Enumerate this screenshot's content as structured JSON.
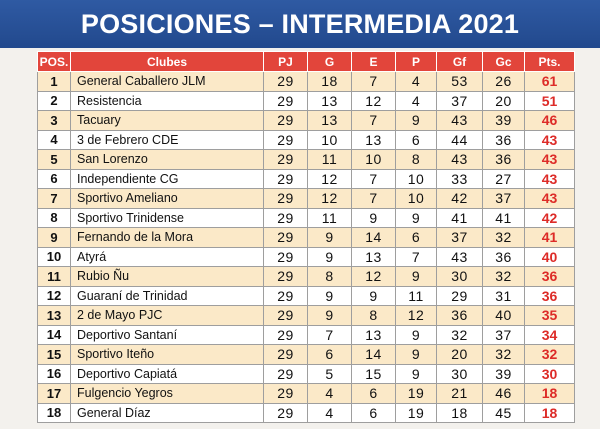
{
  "title": "POSICIONES – INTERMEDIA 2021",
  "columns": [
    "POS.",
    "Clubes",
    "PJ",
    "G",
    "E",
    "P",
    "Gf",
    "Gc",
    "Pts."
  ],
  "rows": [
    {
      "pos": "1",
      "club": "General Caballero JLM",
      "pj": "29",
      "g": "18",
      "e": "7",
      "p": "4",
      "gf": "53",
      "gc": "26",
      "pts": "61"
    },
    {
      "pos": "2",
      "club": "Resistencia",
      "pj": "29",
      "g": "13",
      "e": "12",
      "p": "4",
      "gf": "37",
      "gc": "20",
      "pts": "51"
    },
    {
      "pos": "3",
      "club": "Tacuary",
      "pj": "29",
      "g": "13",
      "e": "7",
      "p": "9",
      "gf": "43",
      "gc": "39",
      "pts": "46"
    },
    {
      "pos": "4",
      "club": "3 de Febrero CDE",
      "pj": "29",
      "g": "10",
      "e": "13",
      "p": "6",
      "gf": "44",
      "gc": "36",
      "pts": "43"
    },
    {
      "pos": "5",
      "club": "San Lorenzo",
      "pj": "29",
      "g": "11",
      "e": "10",
      "p": "8",
      "gf": "43",
      "gc": "36",
      "pts": "43"
    },
    {
      "pos": "6",
      "club": "Independiente CG",
      "pj": "29",
      "g": "12",
      "e": "7",
      "p": "10",
      "gf": "33",
      "gc": "27",
      "pts": "43"
    },
    {
      "pos": "7",
      "club": "Sportivo Ameliano",
      "pj": "29",
      "g": "12",
      "e": "7",
      "p": "10",
      "gf": "42",
      "gc": "37",
      "pts": "43"
    },
    {
      "pos": "8",
      "club": "Sportivo Trinidense",
      "pj": "29",
      "g": "11",
      "e": "9",
      "p": "9",
      "gf": "41",
      "gc": "41",
      "pts": "42"
    },
    {
      "pos": "9",
      "club": "Fernando de la Mora",
      "pj": "29",
      "g": "9",
      "e": "14",
      "p": "6",
      "gf": "37",
      "gc": "32",
      "pts": "41"
    },
    {
      "pos": "10",
      "club": "Atyrá",
      "pj": "29",
      "g": "9",
      "e": "13",
      "p": "7",
      "gf": "43",
      "gc": "36",
      "pts": "40"
    },
    {
      "pos": "11",
      "club": "Rubio Ñu",
      "pj": "29",
      "g": "8",
      "e": "12",
      "p": "9",
      "gf": "30",
      "gc": "32",
      "pts": "36"
    },
    {
      "pos": "12",
      "club": "Guaraní de Trinidad",
      "pj": "29",
      "g": "9",
      "e": "9",
      "p": "11",
      "gf": "29",
      "gc": "31",
      "pts": "36"
    },
    {
      "pos": "13",
      "club": "2 de Mayo PJC",
      "pj": "29",
      "g": "9",
      "e": "8",
      "p": "12",
      "gf": "36",
      "gc": "40",
      "pts": "35"
    },
    {
      "pos": "14",
      "club": "Deportivo Santaní",
      "pj": "29",
      "g": "7",
      "e": "13",
      "p": "9",
      "gf": "32",
      "gc": "37",
      "pts": "34"
    },
    {
      "pos": "15",
      "club": "Sportivo Iteño",
      "pj": "29",
      "g": "6",
      "e": "14",
      "p": "9",
      "gf": "20",
      "gc": "32",
      "pts": "32"
    },
    {
      "pos": "16",
      "club": "Deportivo Capiatá",
      "pj": "29",
      "g": "5",
      "e": "15",
      "p": "9",
      "gf": "30",
      "gc": "39",
      "pts": "30"
    },
    {
      "pos": "17",
      "club": "Fulgencio Yegros",
      "pj": "29",
      "g": "4",
      "e": "6",
      "p": "19",
      "gf": "21",
      "gc": "46",
      "pts": "18"
    },
    {
      "pos": "18",
      "club": "General Díaz",
      "pj": "29",
      "g": "4",
      "e": "6",
      "p": "19",
      "gf": "18",
      "gc": "45",
      "pts": "18"
    }
  ],
  "colors": {
    "banner": "#22498d",
    "header": "#e2453b",
    "row_odd": "#fbe9c8",
    "row_even": "#ffffff",
    "points": "#dd2b27"
  }
}
